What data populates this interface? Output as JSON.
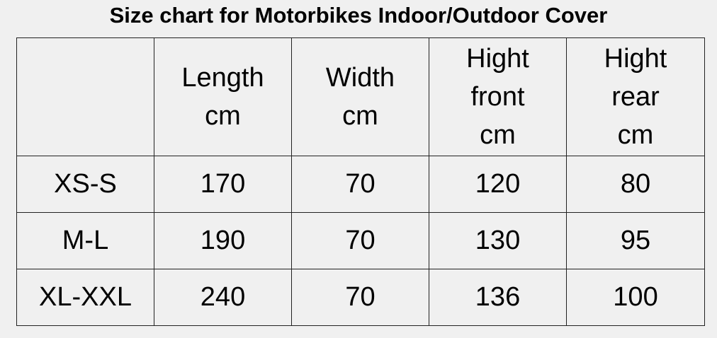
{
  "title": "Size chart for Motorbikes Indoor/Outdoor Cover",
  "table": {
    "header": [
      "Length\ncm",
      "Width\ncm",
      "Hight\nfront\ncm",
      "Hight\nrear\ncm"
    ],
    "rows": [
      [
        "XS-S",
        170,
        70,
        120,
        80
      ],
      [
        "M-L",
        190,
        70,
        130,
        95
      ],
      [
        "XL-XXL",
        240,
        70,
        136,
        100
      ]
    ]
  }
}
